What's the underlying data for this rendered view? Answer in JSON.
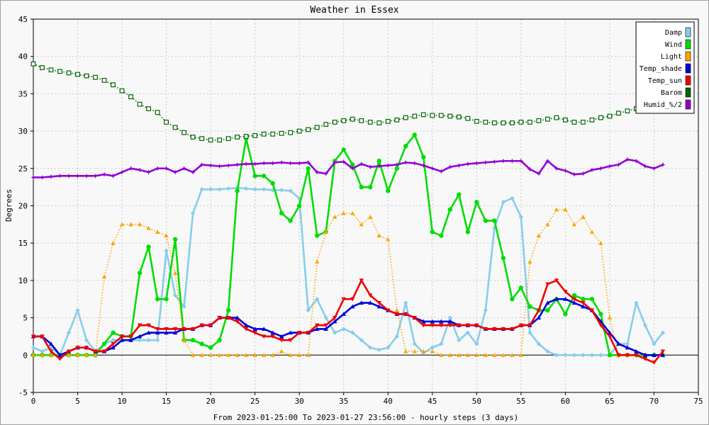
{
  "chart_data": {
    "type": "line",
    "title": "Weather in Essex",
    "xlabel": "From 2023-01-25:00 To 2023-01-27 23:56:00 - hourly steps (3 days)",
    "ylabel": "Degrees",
    "xlim": [
      0,
      75
    ],
    "ylim": [
      -5,
      45
    ],
    "xticks": [
      0,
      5,
      10,
      15,
      20,
      25,
      30,
      35,
      40,
      45,
      50,
      55,
      60,
      65,
      70,
      75
    ],
    "yticks": [
      -5,
      0,
      5,
      10,
      15,
      20,
      25,
      30,
      35,
      40,
      45
    ],
    "grid": true,
    "legend_position": "top-right",
    "series": [
      {
        "name": "Damp",
        "color": "#87ceeb",
        "style": "solid",
        "marker": "diamond",
        "values": [
          1,
          0.5,
          1,
          0,
          3,
          6,
          2,
          0.5,
          1.5,
          2,
          2,
          2,
          2,
          2,
          2,
          14,
          8,
          6.5,
          19,
          22.2,
          22.2,
          22.2,
          22.3,
          22.4,
          22.3,
          22.2,
          22.2,
          22.1,
          22.1,
          22,
          21,
          6,
          7.5,
          5,
          3,
          3.5,
          3,
          2,
          1,
          0.7,
          1,
          2.5,
          7,
          1.5,
          0.3,
          1,
          1.5,
          5,
          2,
          3,
          1.5,
          6,
          17,
          20.5,
          21,
          18.5,
          3,
          1.5,
          0.5,
          0,
          0,
          0,
          0,
          0,
          0,
          0,
          1.5,
          1.5,
          7,
          4,
          1.5,
          3
        ]
      },
      {
        "name": "Wind",
        "color": "#00dd00",
        "style": "solid",
        "marker": "circle",
        "values": [
          0,
          0,
          0,
          0,
          0,
          0,
          0,
          0,
          1.5,
          3,
          2.5,
          2.5,
          11,
          14.5,
          7.5,
          7.5,
          15.5,
          2,
          2,
          1.5,
          1,
          2,
          6,
          22,
          29,
          24,
          24,
          23,
          19,
          18,
          20,
          25,
          16,
          16.5,
          26,
          27.5,
          25.5,
          22.5,
          22.5,
          26,
          22,
          25,
          28,
          29.5,
          26.5,
          16.5,
          16,
          19.5,
          21.5,
          16.5,
          20.5,
          18,
          18,
          13,
          7.5,
          9,
          6.5,
          6,
          6,
          7.5,
          5.5,
          8,
          7.5,
          7.5,
          5.5,
          0,
          0,
          0,
          0,
          0,
          0,
          0
        ]
      },
      {
        "name": "Light",
        "color": "#ffa500",
        "style": "dotted",
        "marker": "triangle",
        "values": [
          0,
          0,
          0,
          0,
          0,
          0,
          0,
          0,
          10.5,
          15,
          17.5,
          17.5,
          17.5,
          17,
          16.5,
          16,
          11,
          2,
          0,
          0,
          0,
          0,
          0,
          0,
          0,
          0,
          0,
          0,
          0.5,
          0,
          0,
          0,
          12.5,
          16.5,
          18.5,
          19,
          19,
          17.5,
          18.5,
          16,
          15.5,
          6,
          0.5,
          0.5,
          0.5,
          0.5,
          0,
          0,
          0,
          0,
          0,
          0,
          0,
          0,
          0,
          0,
          12.5,
          16,
          17.5,
          19.5,
          19.5,
          17.5,
          18.5,
          16.5,
          15,
          5,
          0,
          0,
          0,
          0,
          0,
          0
        ]
      },
      {
        "name": "Temp_shade",
        "color": "#0000dd",
        "style": "solid",
        "marker": "triangle",
        "values": [
          2.5,
          2.5,
          1.5,
          0,
          0.5,
          1,
          1,
          0.5,
          0.5,
          1,
          2,
          2,
          2.5,
          3,
          3,
          3,
          3,
          3.5,
          3.5,
          4,
          4,
          5,
          5,
          5,
          4,
          3.5,
          3.5,
          3,
          2.5,
          3,
          3,
          3,
          3.5,
          3.5,
          4.5,
          5.5,
          6.5,
          7,
          7,
          6.5,
          6,
          5.5,
          5.5,
          5,
          4.5,
          4.5,
          4.5,
          4.5,
          4,
          4,
          4,
          3.5,
          3.5,
          3.5,
          3.5,
          4,
          4,
          5,
          7,
          7.5,
          7.5,
          7,
          6.5,
          6,
          4.5,
          3,
          1.5,
          1,
          0.5,
          0,
          0,
          0
        ]
      },
      {
        "name": "Temp_sun",
        "color": "#ee0000",
        "style": "solid",
        "marker": "triangle-down",
        "values": [
          2.5,
          2.5,
          0.5,
          -0.5,
          0.5,
          1,
          1,
          0.5,
          0.5,
          1.5,
          2.5,
          2.5,
          4,
          4,
          3.5,
          3.5,
          3.5,
          3.5,
          3.5,
          4,
          4,
          5,
          5,
          4.5,
          3.5,
          3,
          2.5,
          2.5,
          2,
          2,
          3,
          3,
          4,
          4,
          5,
          7.5,
          7.5,
          10,
          8,
          7,
          6,
          5.5,
          5.5,
          5,
          4,
          4,
          4,
          4,
          4,
          4,
          4,
          3.5,
          3.5,
          3.5,
          3.5,
          4,
          4,
          6,
          9.5,
          10,
          8.5,
          7.5,
          7,
          6,
          4,
          2.5,
          0,
          0,
          0,
          -0.5,
          -1,
          0.5
        ]
      },
      {
        "name": "Barom",
        "color": "#006400",
        "style": "dotted",
        "marker": "square",
        "values": [
          39,
          38.5,
          38.2,
          38,
          37.8,
          37.6,
          37.4,
          37.2,
          36.8,
          36.2,
          35.4,
          34.6,
          33.6,
          33,
          32.5,
          31.2,
          30.5,
          29.8,
          29.2,
          29,
          28.8,
          28.8,
          29,
          29.2,
          29.3,
          29.4,
          29.6,
          29.6,
          29.7,
          29.8,
          30,
          30.2,
          30.5,
          30.9,
          31.2,
          31.4,
          31.6,
          31.4,
          31.2,
          31.1,
          31.3,
          31.5,
          31.8,
          32,
          32.2,
          32.1,
          32.1,
          32,
          31.9,
          31.7,
          31.3,
          31.2,
          31.1,
          31.1,
          31.1,
          31.2,
          31.2,
          31.4,
          31.6,
          31.8,
          31.5,
          31.2,
          31.2,
          31.5,
          31.8,
          32,
          32.4,
          32.7,
          33,
          33.1,
          33.2,
          33.5
        ]
      },
      {
        "name": "Humid_%/2",
        "color": "#9400d3",
        "style": "solid",
        "marker": "star",
        "values": [
          23.8,
          23.8,
          23.9,
          24,
          24,
          24,
          24,
          24,
          24.2,
          24,
          24.5,
          25,
          24.8,
          24.5,
          25,
          25,
          24.5,
          25,
          24.5,
          25.5,
          25.4,
          25.3,
          25.4,
          25.5,
          25.6,
          25.6,
          25.7,
          25.7,
          25.8,
          25.7,
          25.7,
          25.8,
          24.5,
          24.3,
          25.8,
          25.9,
          25,
          25.6,
          25.2,
          25.3,
          25.4,
          25.5,
          25.8,
          25.7,
          25.4,
          25,
          24.6,
          25.2,
          25.4,
          25.6,
          25.7,
          25.8,
          25.9,
          26,
          26,
          26,
          24.9,
          24.3,
          26,
          25,
          24.7,
          24.2,
          24.3,
          24.8,
          25,
          25.3,
          25.5,
          26.2,
          26,
          25.3,
          25,
          25.5
        ]
      }
    ]
  }
}
